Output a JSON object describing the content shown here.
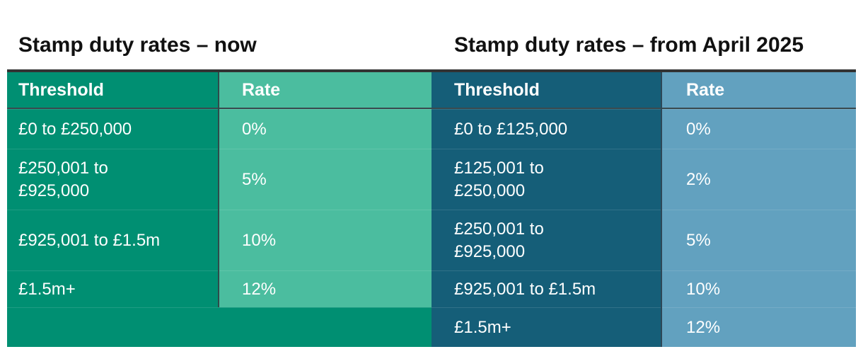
{
  "titles": {
    "now": "Stamp duty rates – now",
    "april": "Stamp duty rates – from April 2025"
  },
  "colors": {
    "now_threshold": "#008f72",
    "now_rate": "#4bbd9f",
    "april_threshold": "#155e78",
    "april_rate": "#62a1bf",
    "rule": "#333333"
  },
  "now": {
    "headers": {
      "threshold": "Threshold",
      "rate": "Rate"
    },
    "rows": [
      {
        "threshold": "£0 to £250,000",
        "rate": "0%"
      },
      {
        "threshold_line1": "£250,001 to",
        "threshold_line2": "£925,000",
        "rate": "5%"
      },
      {
        "threshold": "£925,001 to £1.5m",
        "rate": "10%"
      },
      {
        "threshold": "£1.5m+",
        "rate": "12%"
      }
    ]
  },
  "april": {
    "headers": {
      "threshold": "Threshold",
      "rate": "Rate"
    },
    "rows": [
      {
        "threshold": "£0 to £125,000",
        "rate": "0%"
      },
      {
        "threshold_line1": "£125,001 to",
        "threshold_line2": "£250,000",
        "rate": "2%"
      },
      {
        "threshold_line1": "£250,001 to",
        "threshold_line2": "£925,000",
        "rate": "5%"
      },
      {
        "threshold": "£925,001 to £1.5m",
        "rate": "10%"
      },
      {
        "threshold": "£1.5m+",
        "rate": "12%"
      }
    ]
  }
}
